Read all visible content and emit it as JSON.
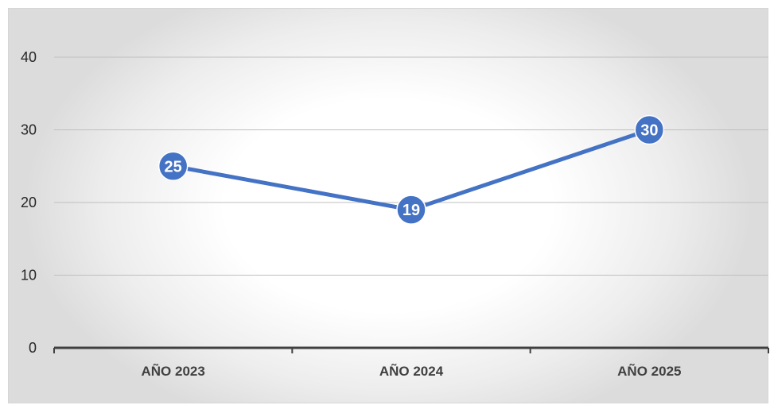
{
  "chart_data": {
    "type": "line",
    "categories": [
      "AÑO 2023",
      "AÑO 2024",
      "AÑO 2025"
    ],
    "series": [
      {
        "values": [
          25,
          19,
          30
        ],
        "color": "#4472C4"
      }
    ],
    "yticks": [
      "0",
      "10",
      "20",
      "30",
      "40"
    ],
    "ylim": [
      0,
      40
    ],
    "grid": true,
    "data_labels": true,
    "legend": "none"
  }
}
